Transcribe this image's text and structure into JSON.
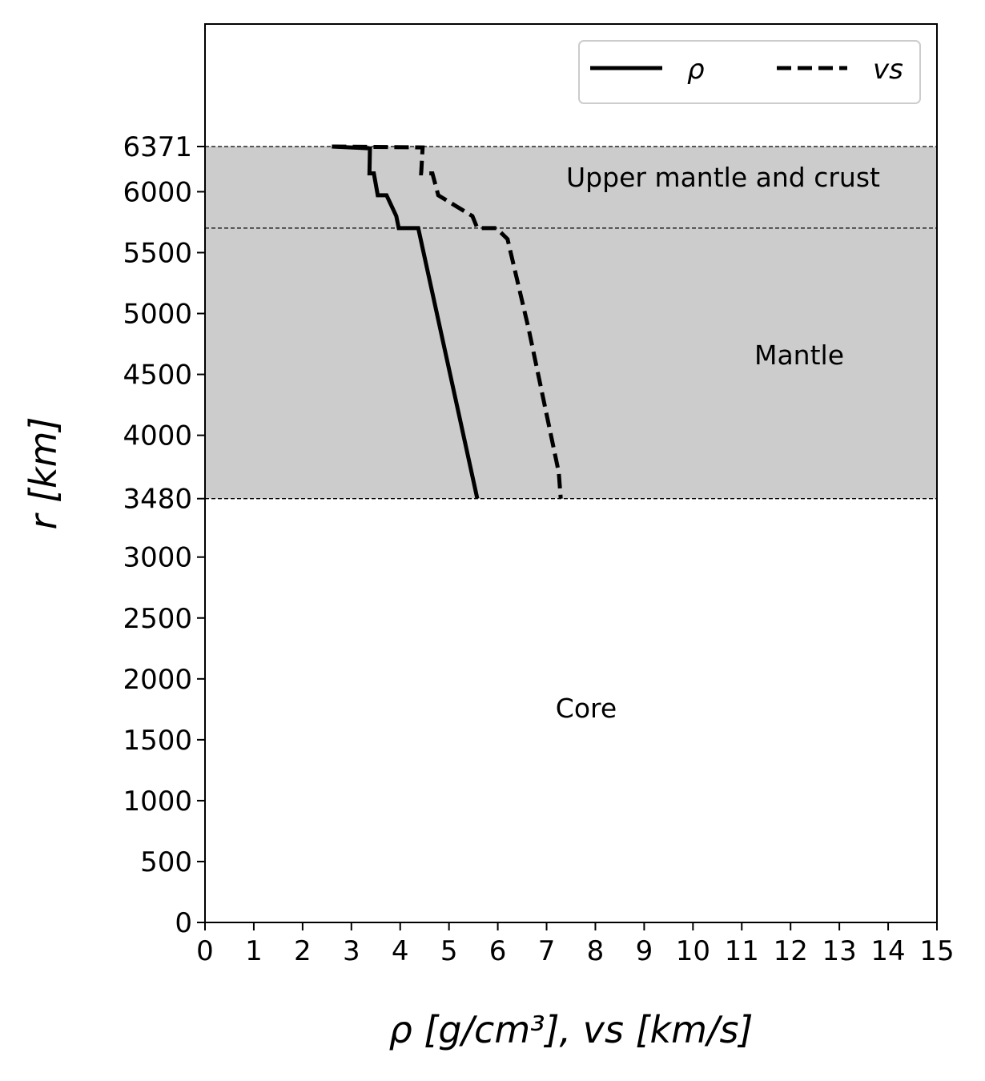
{
  "chart_data": {
    "type": "line",
    "xlabel": "ρ [g/cm³], vs [km/s]",
    "ylabel": "r [km]",
    "xlim": [
      0,
      15
    ],
    "ylim": [
      0,
      7377
    ],
    "grid": false,
    "legend_placement": "top-right",
    "x_ticks": [
      0,
      1,
      2,
      3,
      4,
      5,
      6,
      7,
      8,
      9,
      10,
      11,
      12,
      13,
      14,
      15
    ],
    "y_ticks": [
      0,
      500,
      1000,
      1500,
      2000,
      2500,
      3000,
      3480,
      4000,
      4500,
      5000,
      5500,
      6000,
      6371
    ],
    "regions": [
      {
        "label": "Upper mantle and crust",
        "r_range": [
          5701,
          6371
        ],
        "color": "#cccccc"
      },
      {
        "label": "Mantle",
        "r_range": [
          3480,
          5701
        ],
        "color": "#cccccc"
      },
      {
        "label": "Core",
        "r_range": [
          0,
          3480
        ],
        "color": "#ffffff"
      }
    ],
    "boundaries": [
      6371,
      5701,
      3480
    ],
    "series": [
      {
        "name": "ρ",
        "style": "solid",
        "color": "#000000",
        "x": [
          2.6,
          3.38,
          3.37,
          3.46,
          3.54,
          3.72,
          3.92,
          3.97,
          4.37,
          5.58
        ],
        "y": [
          6371,
          6356,
          6151,
          6151,
          5971,
          5971,
          5800,
          5701,
          5701,
          3480
        ]
      },
      {
        "name": "vs",
        "style": "dashed",
        "color": "#000000",
        "x": [
          2.6,
          4.46,
          4.43,
          4.66,
          4.78,
          5.48,
          5.58,
          5.97,
          6.2,
          6.63,
          7.25,
          7.29
        ],
        "y": [
          6371,
          6364,
          6151,
          6151,
          5971,
          5800,
          5701,
          5701,
          5611,
          4878,
          3695,
          3480
        ]
      }
    ]
  }
}
